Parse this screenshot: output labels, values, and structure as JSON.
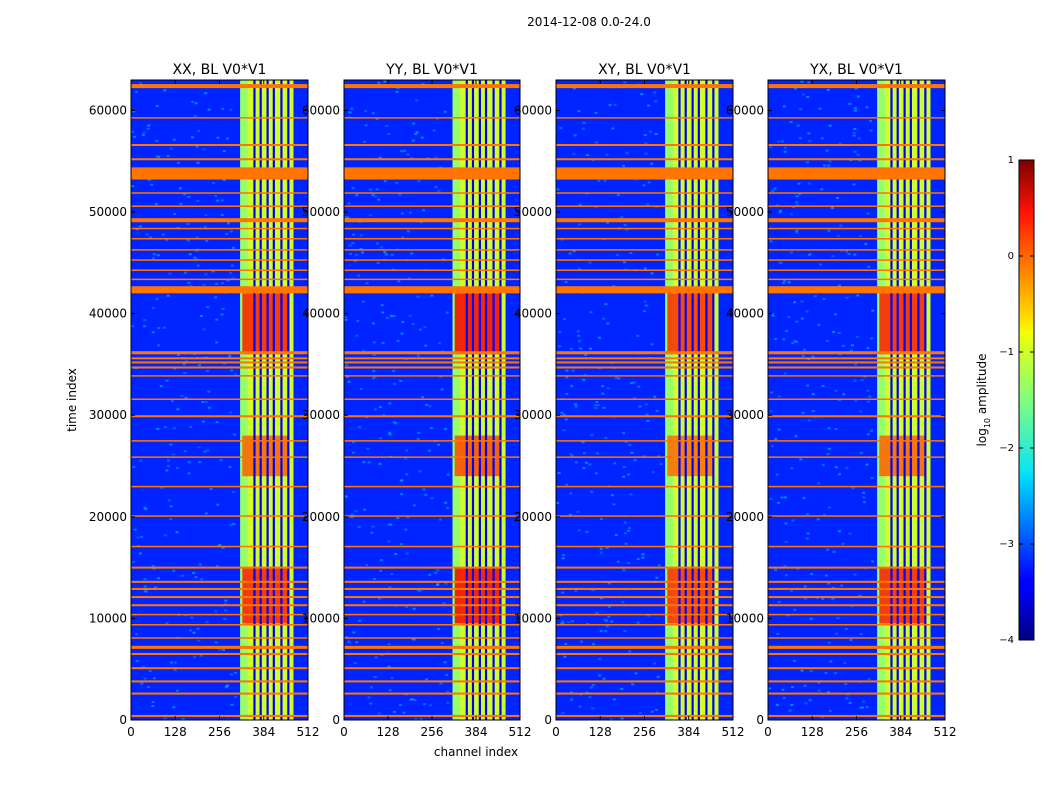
{
  "chart_data": {
    "type": "heatmap",
    "suptitle": "2014-12-08 0.0-24.0",
    "xlabel": "channel index",
    "ylabel": "time index",
    "xlim": [
      0,
      512
    ],
    "ylim": [
      0,
      63000
    ],
    "xticks": [
      0,
      128,
      256,
      384,
      512
    ],
    "yticks": [
      0,
      10000,
      20000,
      30000,
      40000,
      50000,
      60000
    ],
    "xtick_labels": [
      "0",
      "128",
      "256",
      "384",
      "512"
    ],
    "ytick_labels": [
      "0",
      "10000",
      "20000",
      "30000",
      "40000",
      "50000",
      "60000"
    ],
    "colormap": "jet",
    "panels": [
      {
        "title": "XX, BL V0*V1",
        "strength": 0.9
      },
      {
        "title": "YY, BL V0*V1",
        "strength": 1.0
      },
      {
        "title": "XY, BL V0*V1",
        "strength": 0.85
      },
      {
        "title": "YX, BL V0*V1",
        "strength": 0.9
      }
    ],
    "colorbar": {
      "label": "log10 amplitude",
      "label_main": "log",
      "label_sub": "10",
      "label_rest": " amplitude",
      "range": [
        -4,
        1
      ],
      "ticks": [
        1,
        0,
        -1,
        -2,
        -3,
        -4
      ],
      "tick_labels": [
        "1",
        "0",
        "−1",
        "−2",
        "−3",
        "−4"
      ]
    },
    "flagged_time_bands": [
      [
        300,
        500
      ],
      [
        2500,
        2700
      ],
      [
        3700,
        3900
      ],
      [
        5000,
        5200
      ],
      [
        6400,
        6600
      ],
      [
        7000,
        7300
      ],
      [
        8000,
        8150
      ],
      [
        9300,
        9450
      ],
      [
        10300,
        10450
      ],
      [
        11200,
        11400
      ],
      [
        12000,
        12200
      ],
      [
        12800,
        13000
      ],
      [
        13500,
        13700
      ],
      [
        14900,
        15100
      ],
      [
        17000,
        17150
      ],
      [
        20000,
        20150
      ],
      [
        22900,
        23050
      ],
      [
        25800,
        25950
      ],
      [
        27400,
        27550
      ],
      [
        29800,
        30000
      ],
      [
        31500,
        31650
      ],
      [
        33800,
        33950
      ],
      [
        34600,
        34800
      ],
      [
        35100,
        35300
      ],
      [
        35500,
        35700
      ],
      [
        36000,
        36300
      ],
      [
        42000,
        42700
      ],
      [
        43300,
        43450
      ],
      [
        44200,
        44350
      ],
      [
        45200,
        45350
      ],
      [
        46200,
        46350
      ],
      [
        47300,
        47450
      ],
      [
        48300,
        48450
      ],
      [
        49000,
        49400
      ],
      [
        50500,
        50650
      ],
      [
        51800,
        51950
      ],
      [
        53200,
        54400
      ],
      [
        55100,
        55300
      ],
      [
        56500,
        56700
      ],
      [
        59200,
        59350
      ],
      [
        62200,
        62600
      ]
    ],
    "bright_channel_range": [
      316,
      470
    ],
    "channel_dividers": [
      354,
      372,
      392,
      410,
      432,
      452
    ],
    "strong_time_ranges": [
      [
        9500,
        15000
      ],
      [
        36000,
        42000
      ],
      [
        24000,
        28000
      ]
    ],
    "reference_levels": {
      "background": -3.2,
      "band_edge": -1.4,
      "band": -1.1,
      "strong": 0.4,
      "flag": -0.2,
      "divider": -3.4
    }
  }
}
